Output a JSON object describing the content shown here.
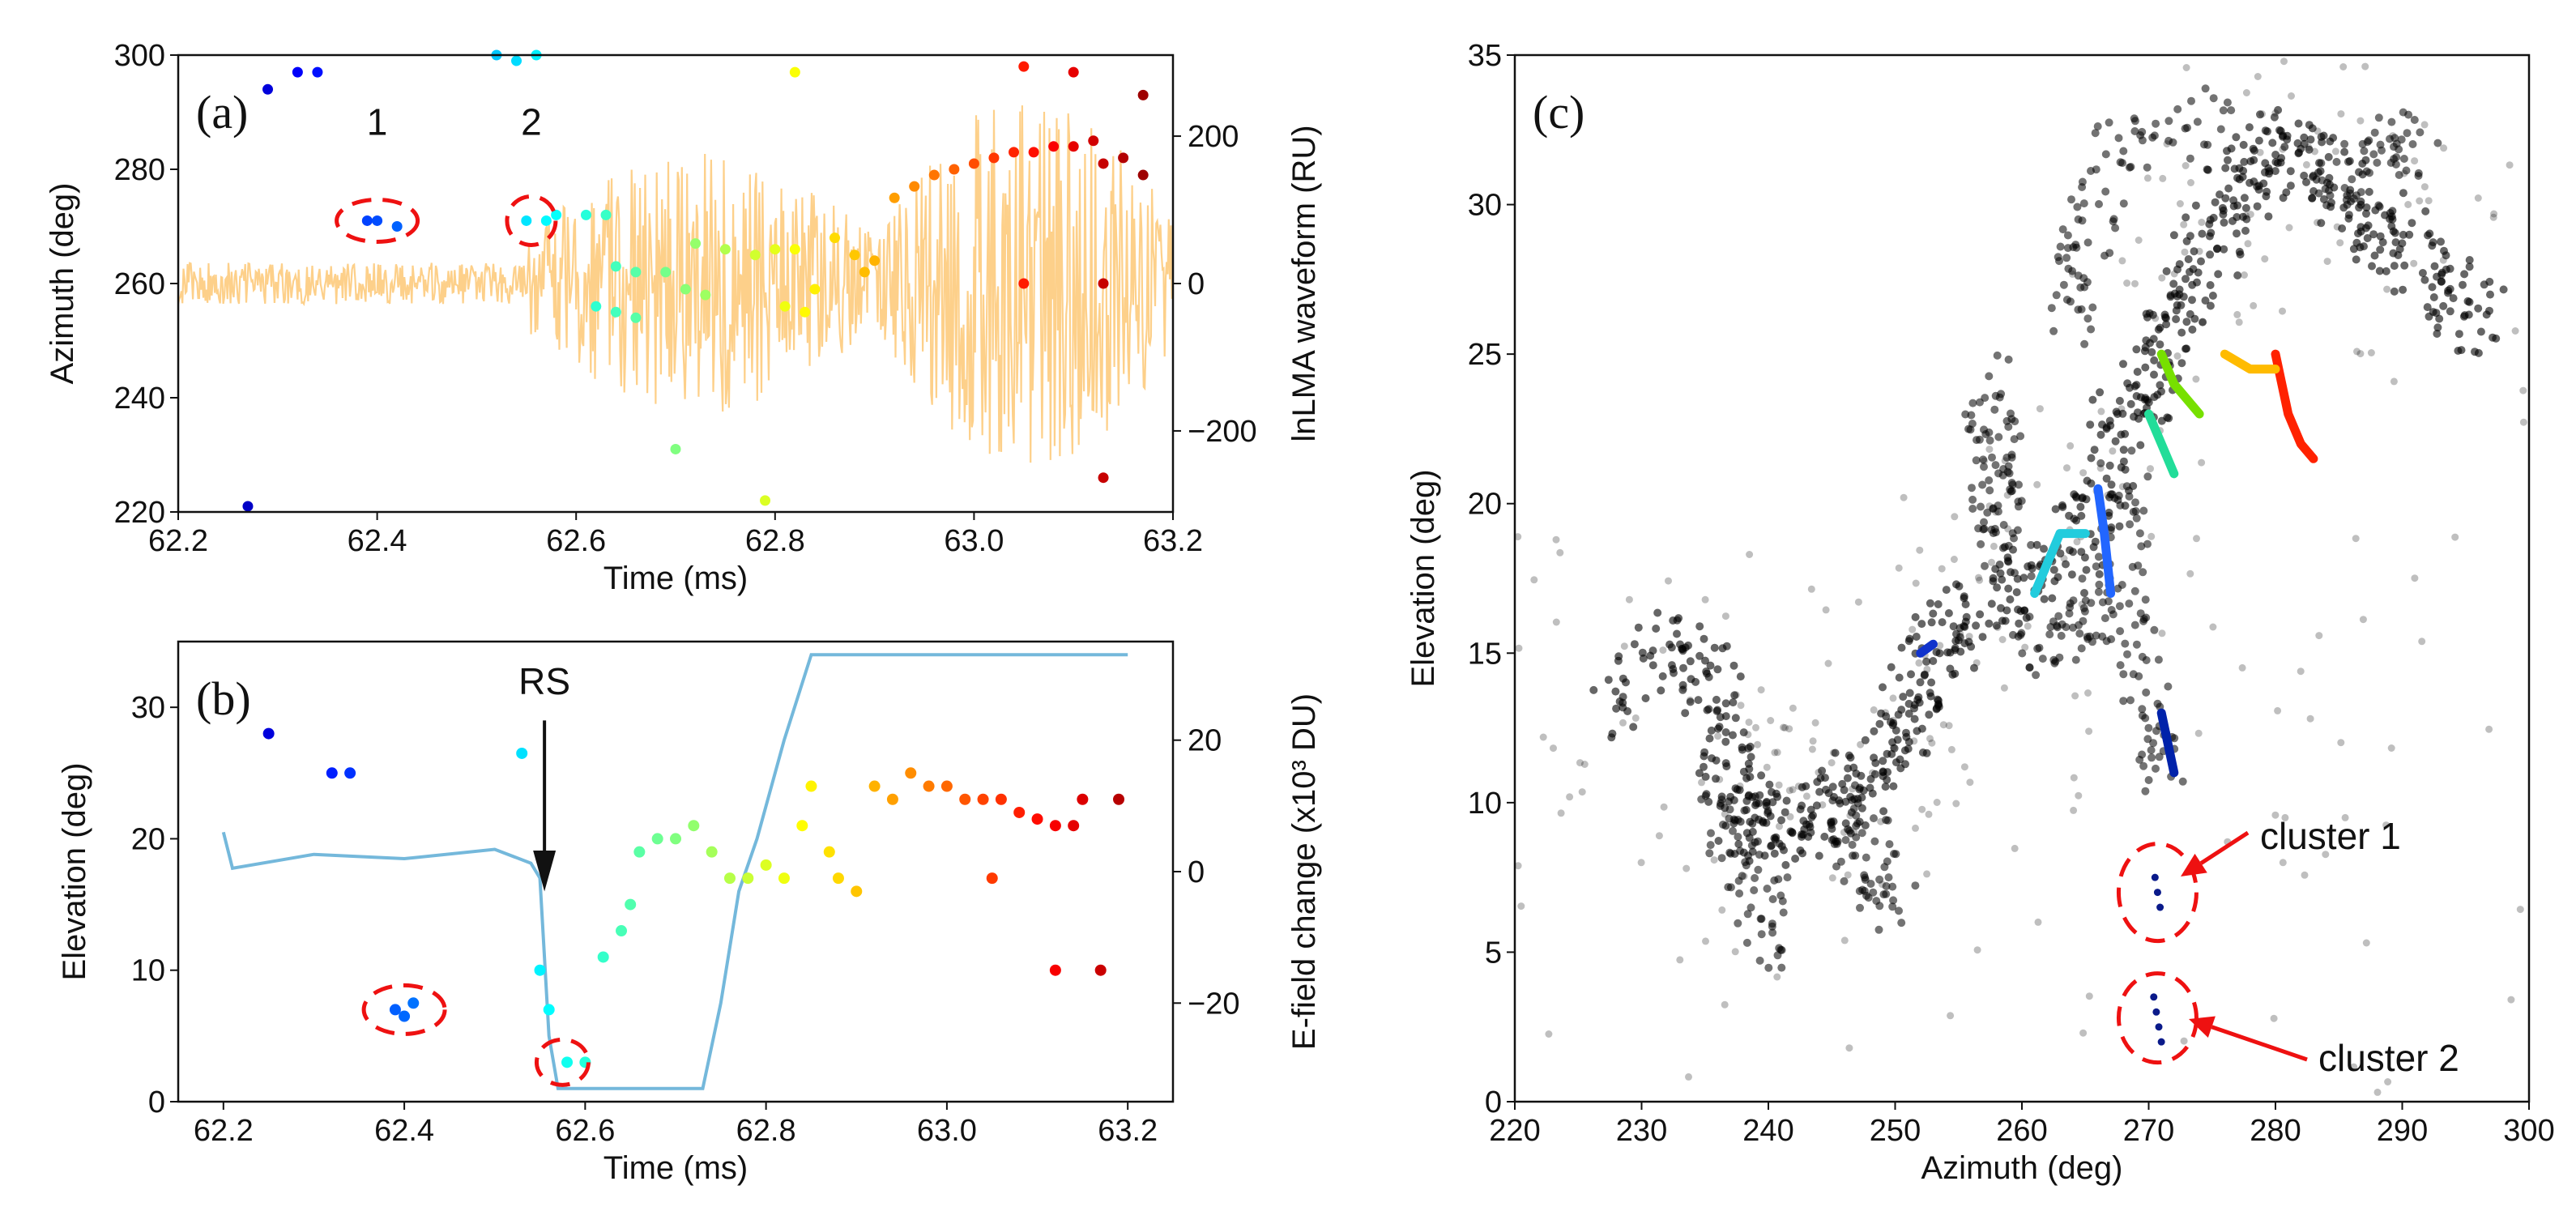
{
  "figure": {
    "panel_a_label": "(a)",
    "panel_b_label": "(b)",
    "panel_c_label": "(c)"
  },
  "chart_data": [
    {
      "panel": "(a)",
      "type": "scatter",
      "xlabel": "Time (ms)",
      "ylabel": "Azimuth (deg)",
      "y2label": "lnLMA waveform (RU)",
      "xlim": [
        62.2,
        63.2
      ],
      "ylim": [
        220,
        300
      ],
      "y2lim": [
        -310,
        310
      ],
      "xticks": [
        "62.2",
        "62.4",
        "62.6",
        "62.8",
        "63.0",
        "63.2"
      ],
      "yticks": [
        "220",
        "240",
        "260",
        "280",
        "300"
      ],
      "y2ticks": [
        "−200",
        "0",
        "200"
      ],
      "grid": false,
      "waveform_color": "#fdd08a",
      "annotations": [
        "1",
        "2"
      ],
      "series": [
        {
          "values": [
            [
              62.27,
              221
            ],
            [
              62.29,
              294
            ],
            [
              62.32,
              297
            ],
            [
              62.34,
              297
            ],
            [
              62.39,
              271
            ],
            [
              62.4,
              271
            ],
            [
              62.42,
              270
            ],
            [
              62.52,
              300
            ],
            [
              62.54,
              299
            ],
            [
              62.56,
              300
            ],
            [
              62.55,
              271
            ],
            [
              62.57,
              271
            ],
            [
              62.58,
              272
            ],
            [
              62.61,
              272
            ],
            [
              62.63,
              272
            ],
            [
              62.62,
              256
            ],
            [
              62.64,
              255
            ],
            [
              62.66,
              254
            ],
            [
              62.64,
              263
            ],
            [
              62.66,
              262
            ],
            [
              62.69,
              262
            ],
            [
              62.71,
              259
            ],
            [
              62.73,
              258
            ],
            [
              62.7,
              231
            ],
            [
              62.72,
              267
            ],
            [
              62.75,
              266
            ],
            [
              62.78,
              265
            ],
            [
              62.8,
              266
            ],
            [
              62.82,
              266
            ],
            [
              62.81,
              256
            ],
            [
              62.83,
              255
            ],
            [
              62.84,
              259
            ],
            [
              62.86,
              268
            ],
            [
              62.88,
              265
            ],
            [
              62.89,
              262
            ],
            [
              62.9,
              264
            ],
            [
              62.79,
              222
            ],
            [
              62.82,
              297
            ],
            [
              62.92,
              275
            ],
            [
              62.94,
              277
            ],
            [
              62.96,
              279
            ],
            [
              62.98,
              280
            ],
            [
              63.0,
              281
            ],
            [
              63.02,
              282
            ],
            [
              63.04,
              283
            ],
            [
              63.06,
              283
            ],
            [
              63.08,
              284
            ],
            [
              63.1,
              284
            ],
            [
              63.12,
              285
            ],
            [
              63.05,
              298
            ],
            [
              63.05,
              260
            ],
            [
              63.1,
              297
            ],
            [
              63.13,
              260
            ],
            [
              63.13,
              281
            ],
            [
              63.15,
              282
            ],
            [
              63.17,
              293
            ],
            [
              63.17,
              279
            ],
            [
              63.13,
              226
            ]
          ]
        }
      ]
    },
    {
      "panel": "(b)",
      "type": "scatter",
      "xlabel": "Time (ms)",
      "ylabel": "Elevation (deg)",
      "y2label": "E-field change (x10³ DU)",
      "xlim": [
        62.15,
        63.25
      ],
      "ylim": [
        0,
        35
      ],
      "y2lim": [
        -35,
        35
      ],
      "xticks": [
        "62.2",
        "62.4",
        "62.6",
        "62.8",
        "63.0",
        "63.2"
      ],
      "yticks": [
        "0",
        "10",
        "20",
        "30"
      ],
      "y2ticks": [
        "−20",
        "0",
        "20"
      ],
      "grid": false,
      "efield_color": "#74b8db",
      "efield": [
        [
          62.2,
          6
        ],
        [
          62.21,
          2
        ],
        [
          62.3,
          2
        ],
        [
          62.4,
          1
        ],
        [
          62.5,
          2
        ],
        [
          62.54,
          0
        ],
        [
          62.55,
          -2
        ],
        [
          62.56,
          -25
        ],
        [
          62.57,
          -33
        ],
        [
          62.6,
          -33
        ],
        [
          62.7,
          -33
        ],
        [
          62.73,
          -33
        ],
        [
          62.75,
          -20
        ],
        [
          62.77,
          -3
        ],
        [
          62.79,
          5
        ],
        [
          62.82,
          20
        ],
        [
          62.85,
          33
        ],
        [
          63.0,
          33
        ],
        [
          63.2,
          33
        ]
      ],
      "annotations": [
        "RS"
      ],
      "series": [
        {
          "values": [
            [
              62.25,
              28
            ],
            [
              62.32,
              25
            ],
            [
              62.34,
              25
            ],
            [
              62.39,
              7
            ],
            [
              62.4,
              6.5
            ],
            [
              62.41,
              7.5
            ],
            [
              62.53,
              26.5
            ],
            [
              62.55,
              10
            ],
            [
              62.56,
              7
            ],
            [
              62.58,
              3
            ],
            [
              62.6,
              3
            ],
            [
              62.62,
              11
            ],
            [
              62.64,
              13
            ],
            [
              62.65,
              15
            ],
            [
              62.66,
              19
            ],
            [
              62.68,
              20
            ],
            [
              62.7,
              20
            ],
            [
              62.72,
              21
            ],
            [
              62.74,
              19
            ],
            [
              62.76,
              17
            ],
            [
              62.78,
              17
            ],
            [
              62.8,
              18
            ],
            [
              62.82,
              17
            ],
            [
              62.84,
              21
            ],
            [
              62.85,
              24
            ],
            [
              62.87,
              19
            ],
            [
              62.88,
              17
            ],
            [
              62.9,
              16
            ],
            [
              62.92,
              24
            ],
            [
              62.94,
              23
            ],
            [
              62.96,
              25
            ],
            [
              62.98,
              24
            ],
            [
              63.0,
              24
            ],
            [
              63.02,
              23
            ],
            [
              63.04,
              23
            ],
            [
              63.06,
              23
            ],
            [
              63.08,
              22
            ],
            [
              63.1,
              21.5
            ],
            [
              63.12,
              21
            ],
            [
              63.05,
              17
            ],
            [
              63.12,
              10
            ],
            [
              63.14,
              21
            ],
            [
              63.15,
              23
            ],
            [
              63.17,
              10
            ],
            [
              63.19,
              23
            ]
          ]
        }
      ]
    },
    {
      "panel": "(c)",
      "type": "scatter",
      "xlabel": "Azimuth (deg)",
      "ylabel": "Elevation (deg)",
      "xlim": [
        220,
        300
      ],
      "ylim": [
        0,
        35
      ],
      "xticks": [
        "220",
        "230",
        "240",
        "250",
        "260",
        "270",
        "280",
        "290",
        "300"
      ],
      "yticks": [
        "0",
        "5",
        "10",
        "15",
        "20",
        "25",
        "30",
        "35"
      ],
      "grid": false,
      "annotations": [
        "cluster 1",
        "cluster 2"
      ],
      "path": [
        [
          227,
          13
        ],
        [
          232,
          15.5
        ],
        [
          236,
          14
        ],
        [
          237,
          11
        ],
        [
          238,
          9.5
        ],
        [
          240,
          9
        ],
        [
          243,
          9.5
        ],
        [
          246,
          10
        ],
        [
          249,
          11
        ],
        [
          251,
          13
        ],
        [
          253,
          14.5
        ],
        [
          255,
          16
        ],
        [
          259,
          17.5
        ],
        [
          263,
          18
        ],
        [
          266,
          20
        ],
        [
          268,
          23
        ],
        [
          270,
          24
        ],
        [
          272,
          26
        ],
        [
          274,
          28
        ],
        [
          276,
          30
        ],
        [
          278,
          31
        ],
        [
          281,
          32
        ],
        [
          284,
          31
        ],
        [
          287,
          29.5
        ],
        [
          290,
          28.5
        ],
        [
          294,
          27
        ],
        [
          296,
          26
        ]
      ],
      "branches": [
        [
          [
            236,
            10
          ],
          [
            239,
            7
          ],
          [
            241,
            5
          ]
        ],
        [
          [
            246,
            10
          ],
          [
            248,
            8
          ],
          [
            250,
            6.5
          ]
        ],
        [
          [
            268,
            21
          ],
          [
            268,
            17
          ],
          [
            270,
            13
          ],
          [
            271.5,
            11
          ]
        ],
        [
          [
            267,
            17
          ],
          [
            264,
            16
          ],
          [
            261,
            15
          ]
        ],
        [
          [
            259,
            18.5
          ],
          [
            258,
            20
          ],
          [
            258,
            22
          ],
          [
            257,
            24
          ]
        ],
        [
          [
            264,
            26
          ],
          [
            265,
            29
          ],
          [
            268,
            32
          ],
          [
            275,
            33
          ]
        ],
        [
          [
            284,
            31
          ],
          [
            288,
            31
          ],
          [
            291,
            32.5
          ]
        ]
      ],
      "colored_segments": [
        {
          "color": "#ff2200",
          "values": [
            [
              280,
              25
            ],
            [
              281,
              23
            ],
            [
              282,
              22
            ],
            [
              283,
              21.5
            ]
          ]
        },
        {
          "color": "#ffbb00",
          "values": [
            [
              276,
              25
            ],
            [
              278,
              24.5
            ],
            [
              280,
              24.5
            ]
          ]
        },
        {
          "color": "#77e000",
          "values": [
            [
              271,
              25
            ],
            [
              272,
              24
            ],
            [
              274,
              23
            ]
          ]
        },
        {
          "color": "#22dd99",
          "values": [
            [
              270,
              23
            ],
            [
              271,
              22
            ],
            [
              272,
              21
            ]
          ]
        },
        {
          "color": "#22ccdd",
          "values": [
            [
              261,
              17
            ],
            [
              262,
              18
            ],
            [
              263,
              19
            ],
            [
              265,
              19
            ]
          ]
        },
        {
          "color": "#2266ff",
          "values": [
            [
              266,
              20.5
            ],
            [
              266.5,
              19
            ],
            [
              267,
              17
            ]
          ]
        },
        {
          "color": "#1133cc",
          "values": [
            [
              252,
              15
            ],
            [
              253,
              15.3
            ]
          ]
        },
        {
          "color": "#0022aa",
          "values": [
            [
              271,
              13
            ],
            [
              271.5,
              12
            ],
            [
              272,
              11
            ]
          ]
        }
      ],
      "clusters": [
        {
          "name": "cluster 1",
          "values": [
            [
              270.5,
              7.5
            ],
            [
              270.7,
              7
            ],
            [
              270.9,
              6.5
            ]
          ]
        },
        {
          "name": "cluster 2",
          "values": [
            [
              270.4,
              3.5
            ],
            [
              270.6,
              3
            ],
            [
              270.8,
              2.5
            ],
            [
              271,
              2
            ]
          ]
        }
      ]
    }
  ]
}
